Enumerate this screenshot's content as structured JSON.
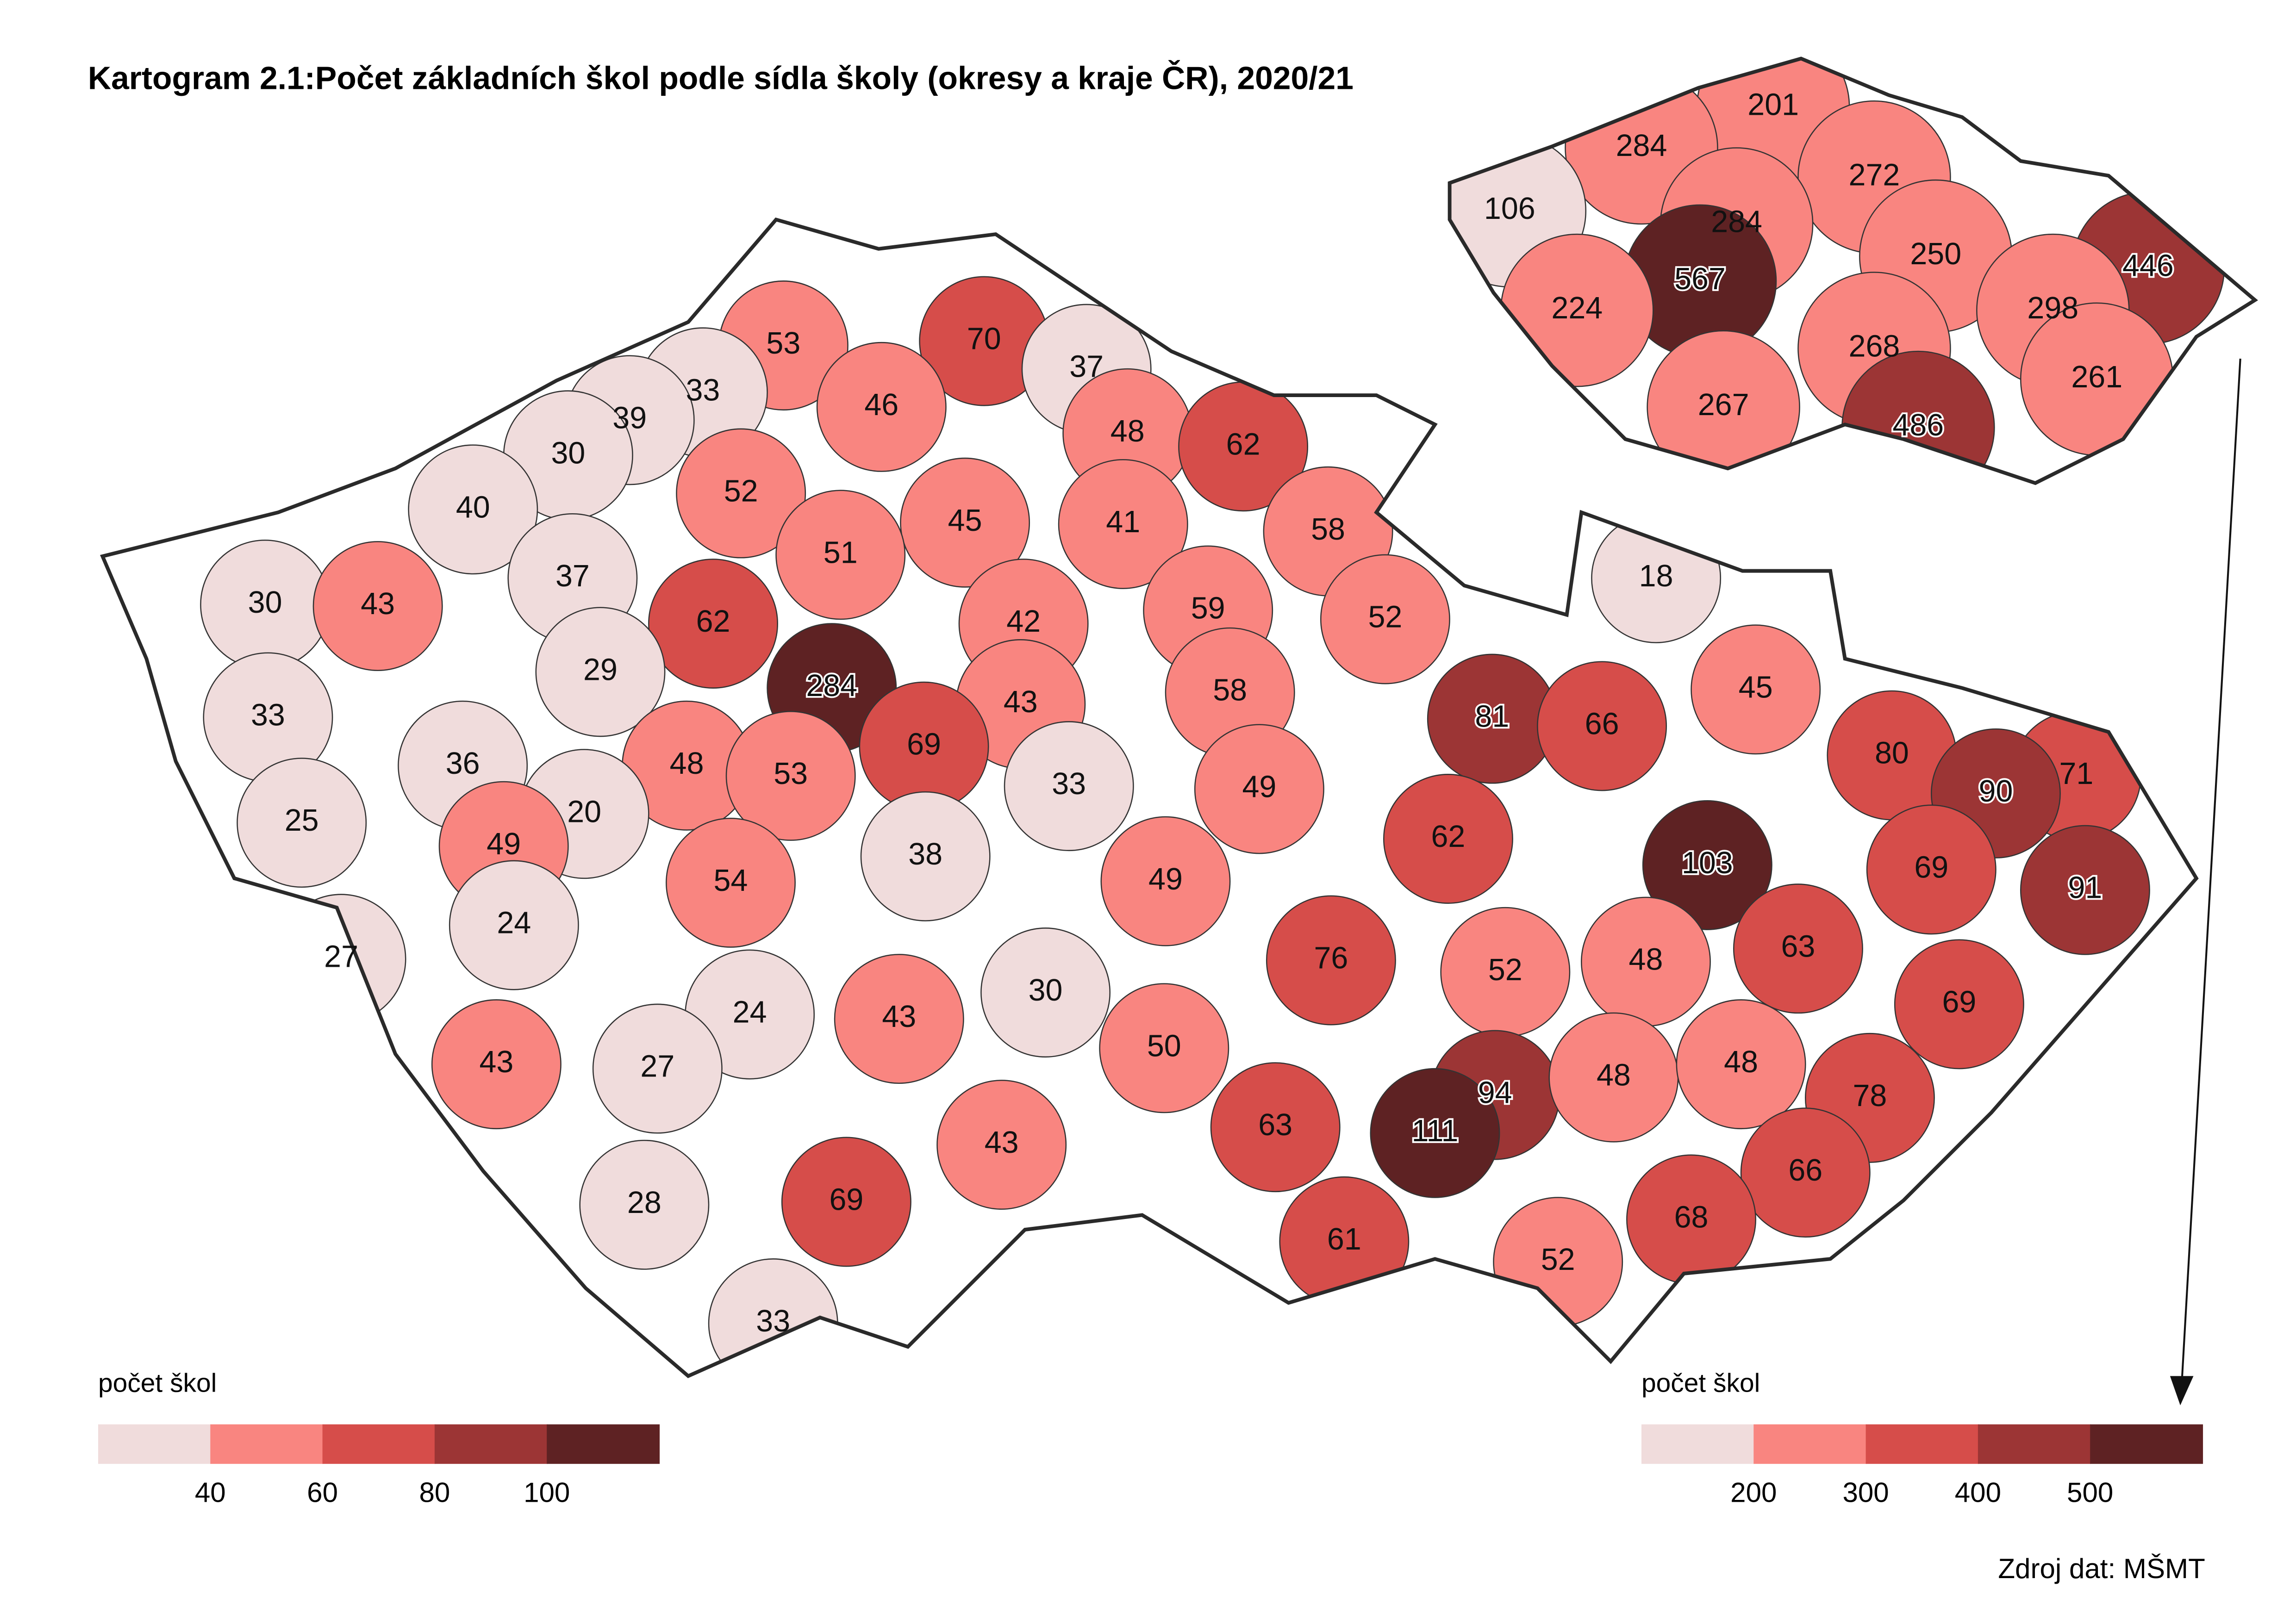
{
  "title": "Kartogram 2.1:Počet základních škol podle sídla školy (okresy a kraje ČR), 2020/21",
  "districts": {
    "values": [
      53,
      70,
      37,
      46,
      33,
      39,
      30,
      48,
      62,
      40,
      52,
      45,
      41,
      58,
      51,
      37,
      30,
      43,
      62,
      42,
      59,
      52,
      18,
      29,
      284,
      43,
      58,
      45,
      81,
      66,
      80,
      71,
      90,
      33,
      36,
      48,
      53,
      69,
      33,
      49,
      20,
      25,
      49,
      38,
      62,
      103,
      69,
      91,
      54,
      49,
      24,
      27,
      63,
      76,
      52,
      48,
      69,
      24,
      43,
      30,
      50,
      27,
      43,
      94,
      48,
      48,
      78,
      111,
      63,
      43,
      69,
      28,
      66,
      68,
      61,
      52,
      33
    ]
  },
  "regions": {
    "values": [
      201,
      284,
      272,
      106,
      284,
      250,
      446,
      567,
      224,
      298,
      268,
      261,
      267,
      486
    ]
  },
  "legend_districts": {
    "title": "počet škol",
    "ticks": [
      40,
      60,
      80,
      100
    ],
    "colors": [
      "#f0dcdc",
      "#f98580",
      "#d64d4a",
      "#9c3535",
      "#5e2223"
    ]
  },
  "legend_regions": {
    "title": "počet škol",
    "ticks": [
      200,
      300,
      400,
      500
    ],
    "colors": [
      "#f0dcdc",
      "#f98580",
      "#d64d4a",
      "#9c3535",
      "#5e2223"
    ]
  },
  "source": "Zdroj dat: MŠMT"
}
